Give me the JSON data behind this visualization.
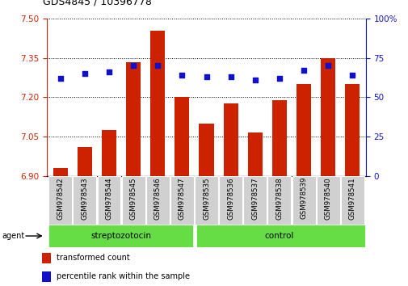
{
  "title": "GDS4845 / 10396778",
  "samples": [
    "GSM978542",
    "GSM978543",
    "GSM978544",
    "GSM978545",
    "GSM978546",
    "GSM978547",
    "GSM978535",
    "GSM978536",
    "GSM978537",
    "GSM978538",
    "GSM978539",
    "GSM978540",
    "GSM978541"
  ],
  "red_values": [
    6.93,
    7.01,
    7.075,
    7.335,
    7.455,
    7.2,
    7.1,
    7.175,
    7.065,
    7.19,
    7.25,
    7.35,
    7.25
  ],
  "blue_values": [
    62,
    65,
    66,
    70,
    70,
    64,
    63,
    63,
    61,
    62,
    67,
    70,
    64
  ],
  "ylim_left": [
    6.9,
    7.5
  ],
  "ylim_right": [
    0,
    100
  ],
  "yticks_left": [
    6.9,
    7.05,
    7.2,
    7.35,
    7.5
  ],
  "yticks_right": [
    0,
    25,
    50,
    75,
    100
  ],
  "ytick_labels_right": [
    "0",
    "25",
    "50",
    "75",
    "100%"
  ],
  "bar_color": "#cc2200",
  "dot_color": "#1111cc",
  "base_value": 6.9,
  "group1_label": "streptozotocin",
  "group2_label": "control",
  "group1_count": 6,
  "group2_count": 7,
  "legend_bar_label": "transformed count",
  "legend_dot_label": "percentile rank within the sample",
  "agent_label": "agent",
  "bg_color_tick": "#d0d0d0",
  "bg_color_group": "#66dd44",
  "left_axis_color": "#cc2200",
  "right_axis_color": "#1111cc"
}
